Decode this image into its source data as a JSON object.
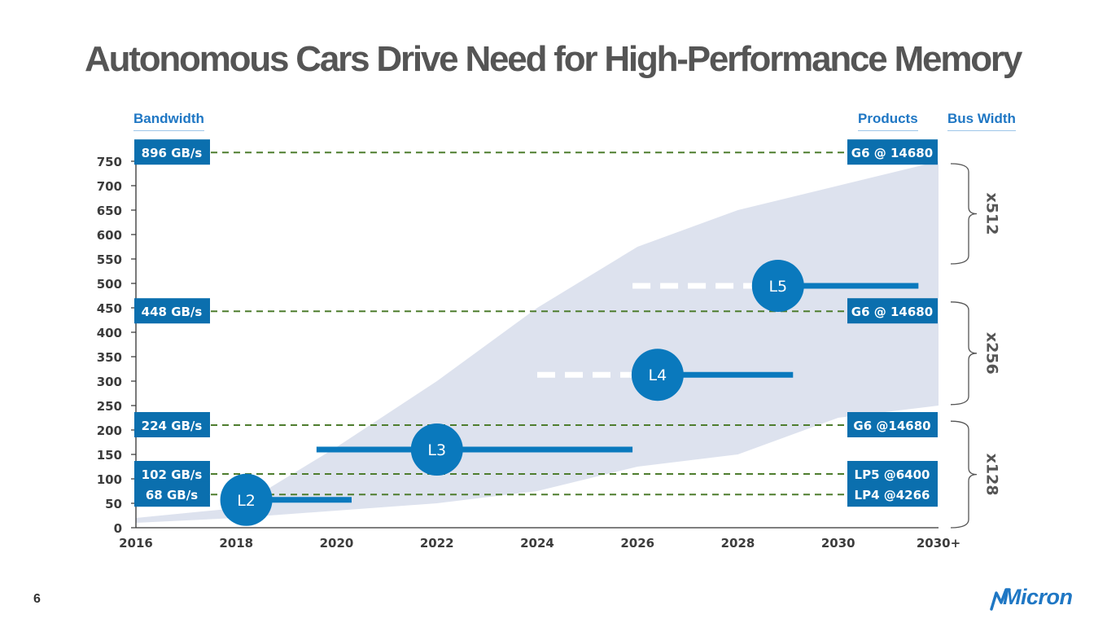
{
  "title": "Autonomous Cars Drive Need for High-Performance Memory",
  "headers": {
    "bandwidth": "Bandwidth",
    "products": "Products",
    "bus_width": "Bus Width"
  },
  "page_number": "6",
  "logo": "Micron",
  "colors": {
    "accent": "#0a79bd",
    "label_box": "#0b6fae",
    "band": "#dde2ee",
    "guide_dash": "#4e7d2e",
    "axis_text": "#3c3c3c"
  },
  "chart_data": {
    "type": "area",
    "x_ticks": [
      "2016",
      "2018",
      "2020",
      "2022",
      "2024",
      "2026",
      "2028",
      "2030",
      "2030+"
    ],
    "x_range": [
      2016,
      2032
    ],
    "y_ticks": [
      0,
      50,
      100,
      150,
      200,
      250,
      300,
      350,
      400,
      450,
      500,
      550,
      600,
      650,
      700,
      750
    ],
    "ylim": [
      0,
      750
    ],
    "band": {
      "upper": [
        [
          2016,
          20
        ],
        [
          2018,
          40
        ],
        [
          2020,
          165
        ],
        [
          2022,
          300
        ],
        [
          2024,
          450
        ],
        [
          2026,
          575
        ],
        [
          2028,
          650
        ],
        [
          2030,
          700
        ],
        [
          2032,
          750
        ]
      ],
      "lower": [
        [
          2016,
          10
        ],
        [
          2018,
          20
        ],
        [
          2020,
          35
        ],
        [
          2022,
          50
        ],
        [
          2024,
          75
        ],
        [
          2026,
          125
        ],
        [
          2028,
          150
        ],
        [
          2030,
          225
        ],
        [
          2032,
          250
        ]
      ]
    },
    "bandwidth_levels": [
      {
        "label": "896 GB/s",
        "product": "G6 @ 14680",
        "y": 768
      },
      {
        "label": "448 GB/s",
        "product": "G6 @ 14680",
        "y": 443
      },
      {
        "label": "224 GB/s",
        "product": "G6 @14680",
        "y": 210
      },
      {
        "label": "102 GB/s",
        "product": "LP5 @6400",
        "y": 110
      },
      {
        "label": "68 GB/s",
        "product": "LP4 @4266",
        "y": 68
      }
    ],
    "autonomy_levels": [
      {
        "label": "L2",
        "x": 2018.2,
        "y": 57,
        "line_start": 2018.2,
        "line_end": 2020.3,
        "dashed_from": null
      },
      {
        "label": "L3",
        "x": 2022.0,
        "y": 160,
        "line_start": 2019.6,
        "line_end": 2025.9,
        "dashed_from": null
      },
      {
        "label": "L4",
        "x": 2026.4,
        "y": 313,
        "line_start": 2026.4,
        "line_end": 2029.1,
        "dashed_from": 2024.0
      },
      {
        "label": "L5",
        "x": 2028.8,
        "y": 495,
        "line_start": 2028.8,
        "line_end": 2031.6,
        "dashed_from": 2025.9
      }
    ],
    "bus_width_groups": [
      {
        "label": "x512",
        "y_range": [
          540,
          745
        ]
      },
      {
        "label": "x256",
        "y_range": [
          252,
          462
        ]
      },
      {
        "label": "x128",
        "y_range": [
          0,
          218
        ]
      }
    ]
  }
}
